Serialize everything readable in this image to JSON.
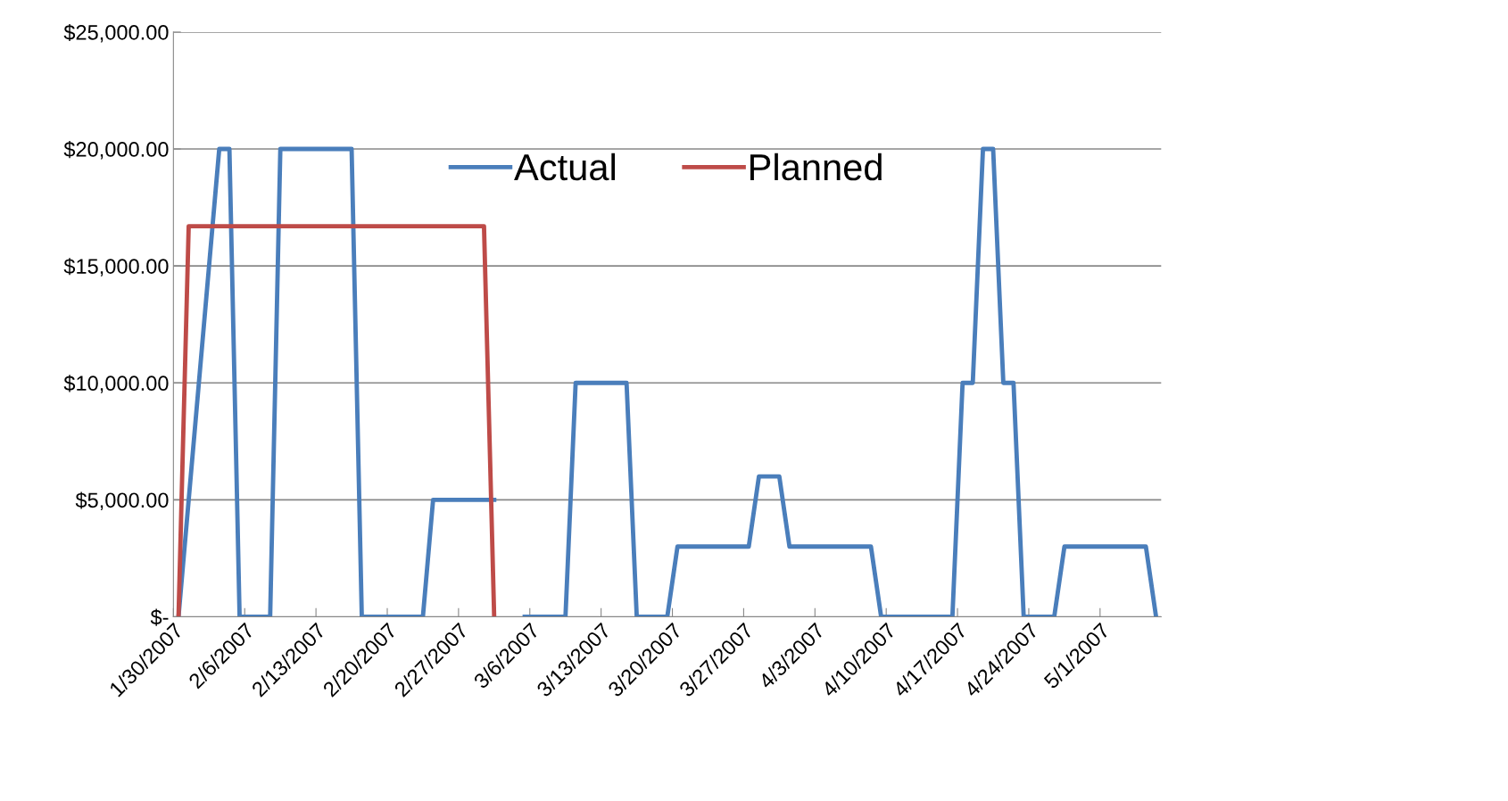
{
  "chart_data": {
    "type": "line",
    "legend": "top",
    "grid": "y",
    "marker": "none",
    "line_style": "solid",
    "xlim": [
      "2007-01-30",
      "2007-05-07"
    ],
    "xticks": [
      {
        "value": "2007-01-30",
        "label": "1/30/2007"
      },
      {
        "value": "2007-02-06",
        "label": "2/6/2007"
      },
      {
        "value": "2007-02-13",
        "label": "2/13/2007"
      },
      {
        "value": "2007-02-20",
        "label": "2/20/2007"
      },
      {
        "value": "2007-02-27",
        "label": "2/27/2007"
      },
      {
        "value": "2007-03-06",
        "label": "3/6/2007"
      },
      {
        "value": "2007-03-13",
        "label": "3/13/2007"
      },
      {
        "value": "2007-03-20",
        "label": "3/20/2007"
      },
      {
        "value": "2007-03-27",
        "label": "3/27/2007"
      },
      {
        "value": "2007-04-03",
        "label": "4/3/2007"
      },
      {
        "value": "2007-04-10",
        "label": "4/10/2007"
      },
      {
        "value": "2007-04-17",
        "label": "4/17/2007"
      },
      {
        "value": "2007-04-24",
        "label": "4/24/2007"
      },
      {
        "value": "2007-05-01",
        "label": "5/1/2007"
      }
    ],
    "ylim": [
      0,
      25000
    ],
    "yticks": [
      {
        "value": 0,
        "label": "$-"
      },
      {
        "value": 5000,
        "label": "$5,000.00"
      },
      {
        "value": 10000,
        "label": "$10,000.00"
      },
      {
        "value": 15000,
        "label": "$15,000.00"
      },
      {
        "value": 20000,
        "label": "$20,000.00"
      },
      {
        "value": 25000,
        "label": "$25,000.00"
      }
    ],
    "series": [
      {
        "name": "Actual",
        "color": "#4a7ebb",
        "x": [
          "2007-01-30T12:00",
          "2007-02-03T12:00",
          "2007-02-04T12:00",
          "2007-02-05T12:00",
          "2007-02-08T12:00",
          "2007-02-09T12:00",
          "2007-02-16T12:00",
          "2007-02-17T12:00",
          "2007-02-23T12:00",
          "2007-02-24T12:00",
          "2007-03-02T12:00",
          "2007-03-03T12:00",
          "2007-03-05T12:00",
          "2007-03-09T12:00",
          "2007-03-10T12:00",
          "2007-03-15T12:00",
          "2007-03-16T12:00",
          "2007-03-19T12:00",
          "2007-03-20T12:00",
          "2007-03-27T12:00",
          "2007-03-28T12:00",
          "2007-03-30T12:00",
          "2007-03-31T12:00",
          "2007-04-08T12:00",
          "2007-04-09T12:00",
          "2007-04-16T12:00",
          "2007-04-17T12:00",
          "2007-04-18T12:00",
          "2007-04-19T12:00",
          "2007-04-20T12:00",
          "2007-04-21T12:00",
          "2007-04-22T12:00",
          "2007-04-23T12:00",
          "2007-04-26T12:00",
          "2007-04-27T12:00",
          "2007-05-05T12:00",
          "2007-05-06T12:00"
        ],
        "values": [
          0,
          20000,
          20000,
          0,
          0,
          20000,
          20000,
          0,
          0,
          5000,
          5000,
          null,
          0,
          0,
          10000,
          10000,
          0,
          0,
          3000,
          3000,
          6000,
          6000,
          3000,
          3000,
          0,
          0,
          10000,
          10000,
          20000,
          20000,
          10000,
          10000,
          0,
          0,
          3000,
          3000,
          0
        ]
      },
      {
        "name": "Planned",
        "color": "#be4b48",
        "x": [
          "2007-01-30T12:00",
          "2007-01-31T12:00",
          "2007-03-01T12:00",
          "2007-03-02T12:00"
        ],
        "values": [
          0,
          16700,
          16700,
          0
        ]
      }
    ]
  }
}
